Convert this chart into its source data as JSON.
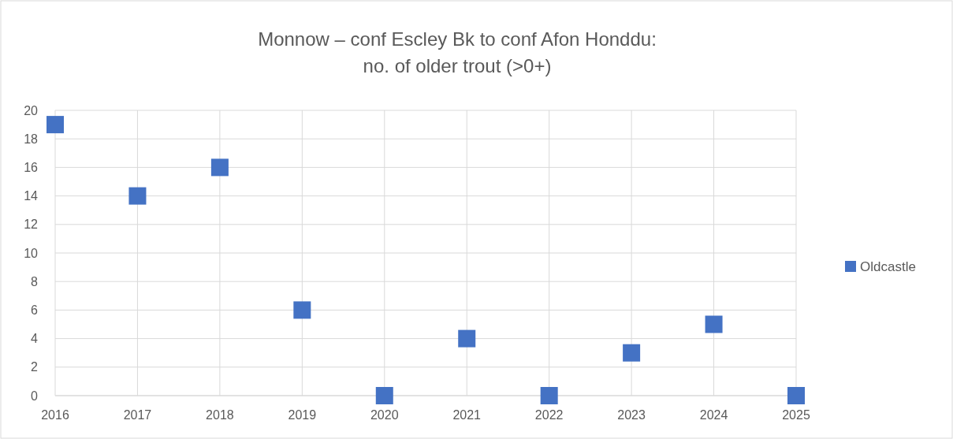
{
  "chart_data": {
    "type": "scatter",
    "title": "Monnow – conf Escley Bk to conf Afon Honddu:\nno. of older trout (>0+)",
    "x": [
      2016,
      2017,
      2018,
      2019,
      2020,
      2021,
      2022,
      2023,
      2024,
      2025
    ],
    "series": [
      {
        "name": "Oldcastle",
        "color": "#4472c4",
        "values": [
          19,
          14,
          16,
          6,
          0,
          4,
          0,
          3,
          5,
          0
        ]
      }
    ],
    "xlim": [
      2016,
      2025
    ],
    "xticks": [
      2016,
      2017,
      2018,
      2019,
      2020,
      2021,
      2022,
      2023,
      2024,
      2025
    ],
    "ylim": [
      0,
      20
    ],
    "yticks": [
      0,
      2,
      4,
      6,
      8,
      10,
      12,
      14,
      16,
      18,
      20
    ],
    "grid": true,
    "legend": "right",
    "marker": "square"
  }
}
